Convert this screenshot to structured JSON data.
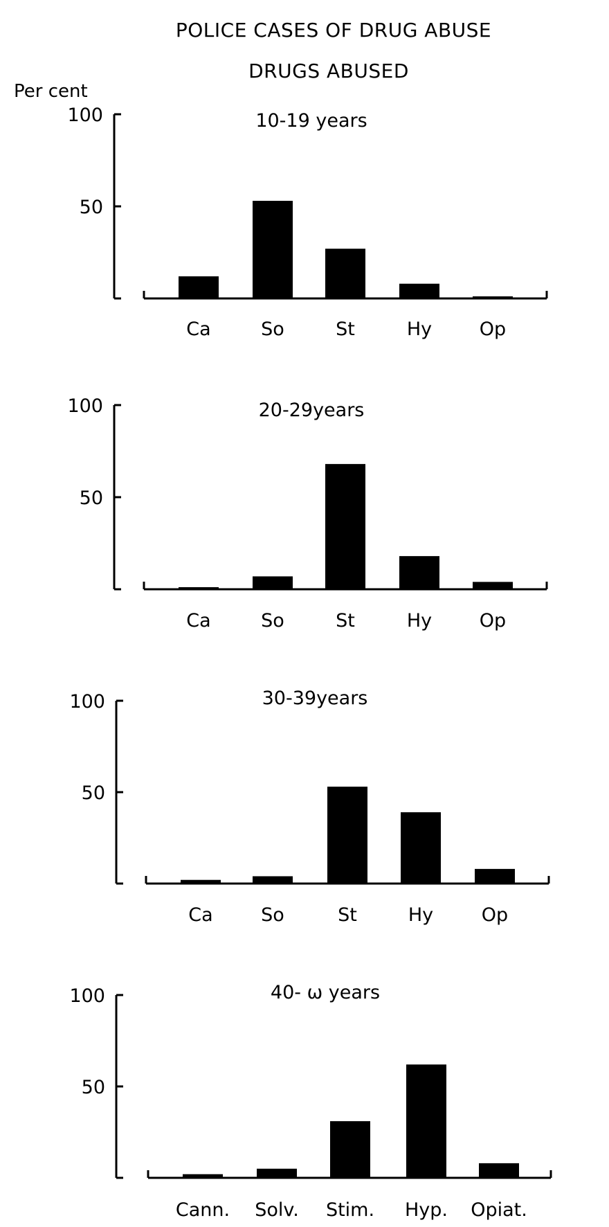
{
  "title": "POLICE CASES OF DRUG ABUSE",
  "subtitle": "DRUGS ABUSED",
  "ylabel": "Per cent",
  "chart_data": [
    {
      "type": "bar",
      "title": "10-19 years",
      "categories": [
        "Ca",
        "So",
        "St",
        "Hy",
        "Op"
      ],
      "values": [
        12,
        53,
        27,
        8,
        1
      ],
      "ylim": [
        0,
        100
      ],
      "yticks": [
        "100",
        "50"
      ],
      "grid": false
    },
    {
      "type": "bar",
      "title": "20-29years",
      "categories": [
        "Ca",
        "So",
        "St",
        "Hy",
        "Op"
      ],
      "values": [
        1,
        7,
        68,
        18,
        4
      ],
      "ylim": [
        0,
        100
      ],
      "yticks": [
        "100",
        "50"
      ],
      "grid": false
    },
    {
      "type": "bar",
      "title": "30-39years",
      "categories": [
        "Ca",
        "So",
        "St",
        "Hy",
        "Op"
      ],
      "values": [
        2,
        4,
        53,
        39,
        8
      ],
      "ylim": [
        0,
        100
      ],
      "yticks": [
        "100",
        "50"
      ],
      "grid": false
    },
    {
      "type": "bar",
      "title": "40- ω years",
      "categories": [
        "Cann.",
        "Solv.",
        "Stim.",
        "Hyp.",
        "Opiat."
      ],
      "values": [
        2,
        5,
        31,
        62,
        8
      ],
      "ylim": [
        0,
        100
      ],
      "yticks": [
        "100",
        "50"
      ],
      "grid": false
    }
  ]
}
